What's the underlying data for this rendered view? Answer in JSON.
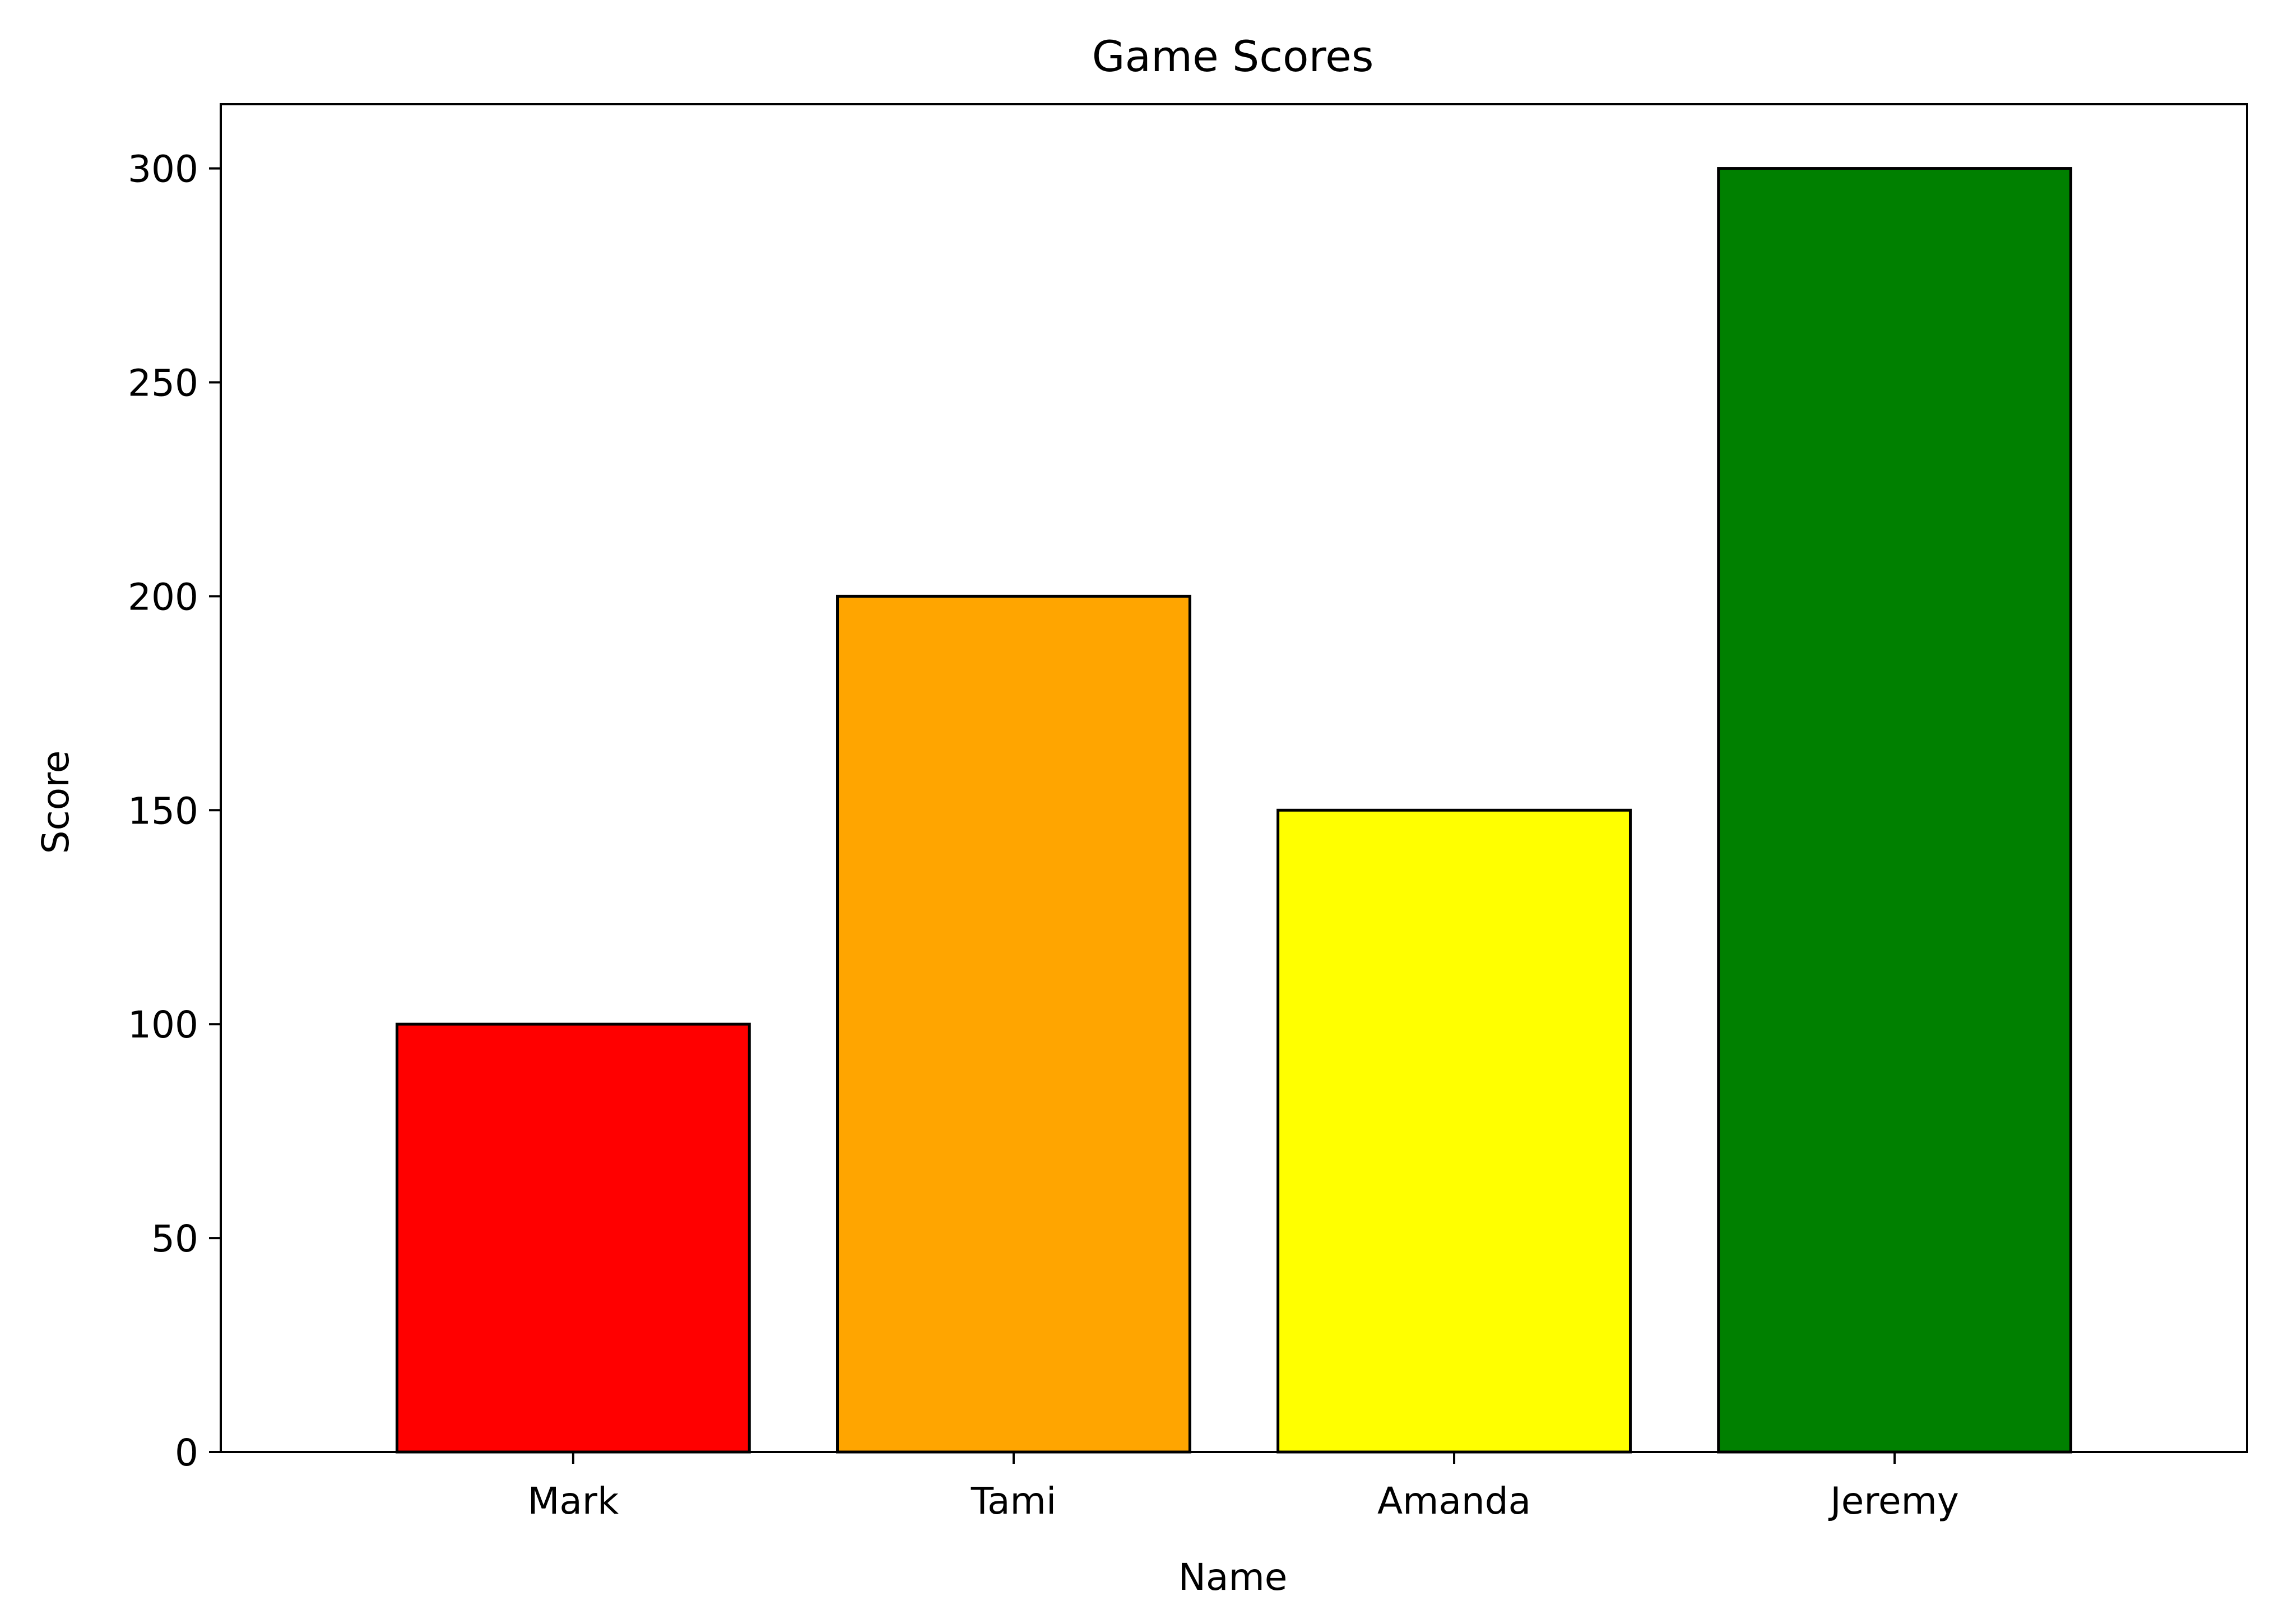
{
  "chart_data": {
    "type": "bar",
    "title": "Game Scores",
    "xlabel": "Name",
    "ylabel": "Score",
    "categories": [
      "Mark",
      "Tami",
      "Amanda",
      "Jeremy"
    ],
    "values": [
      100,
      200,
      150,
      300
    ],
    "colors": [
      "#ff0000",
      "#ffa500",
      "#ffff00",
      "#008000"
    ],
    "edge_color": "#000000",
    "ylim": [
      0,
      315
    ],
    "yticks": [
      0,
      50,
      100,
      150,
      200,
      250,
      300
    ],
    "grid": false,
    "legend": "none"
  }
}
